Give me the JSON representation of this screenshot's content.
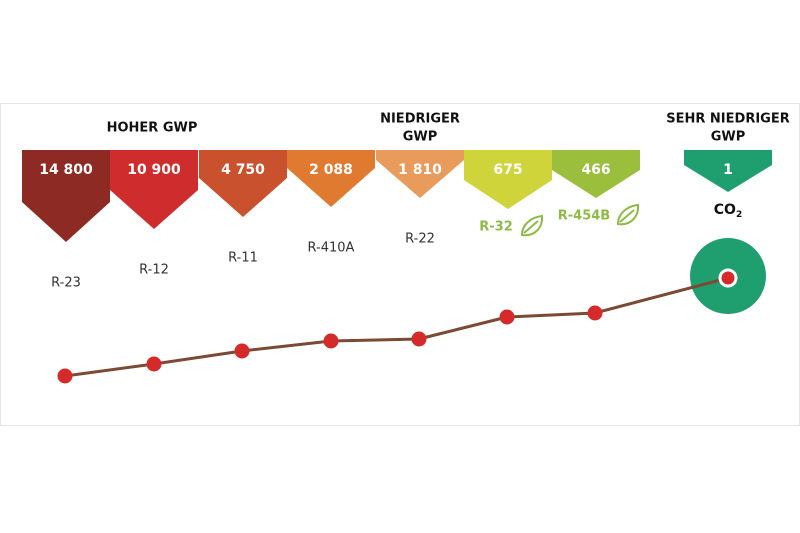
{
  "headings": [
    {
      "lines": [
        "HOHER GWP"
      ]
    },
    {
      "lines": [
        "NIEDRIGER",
        "GWP"
      ]
    },
    {
      "lines": [
        "SEHR NIEDRIGER",
        "GWP"
      ]
    }
  ],
  "refrigerants": [
    {
      "value": "14 800",
      "name": "R-23"
    },
    {
      "value": "10 900",
      "name": "R-12"
    },
    {
      "value": "4 750",
      "name": "R-11"
    },
    {
      "value": "2 088",
      "name": "R-410A"
    },
    {
      "value": "1 810",
      "name": "R-22"
    },
    {
      "value": "675",
      "name": "R-32"
    },
    {
      "value": "466",
      "name": "R-454B"
    },
    {
      "value": "1",
      "name": "CO",
      "subscript": "2"
    }
  ]
}
